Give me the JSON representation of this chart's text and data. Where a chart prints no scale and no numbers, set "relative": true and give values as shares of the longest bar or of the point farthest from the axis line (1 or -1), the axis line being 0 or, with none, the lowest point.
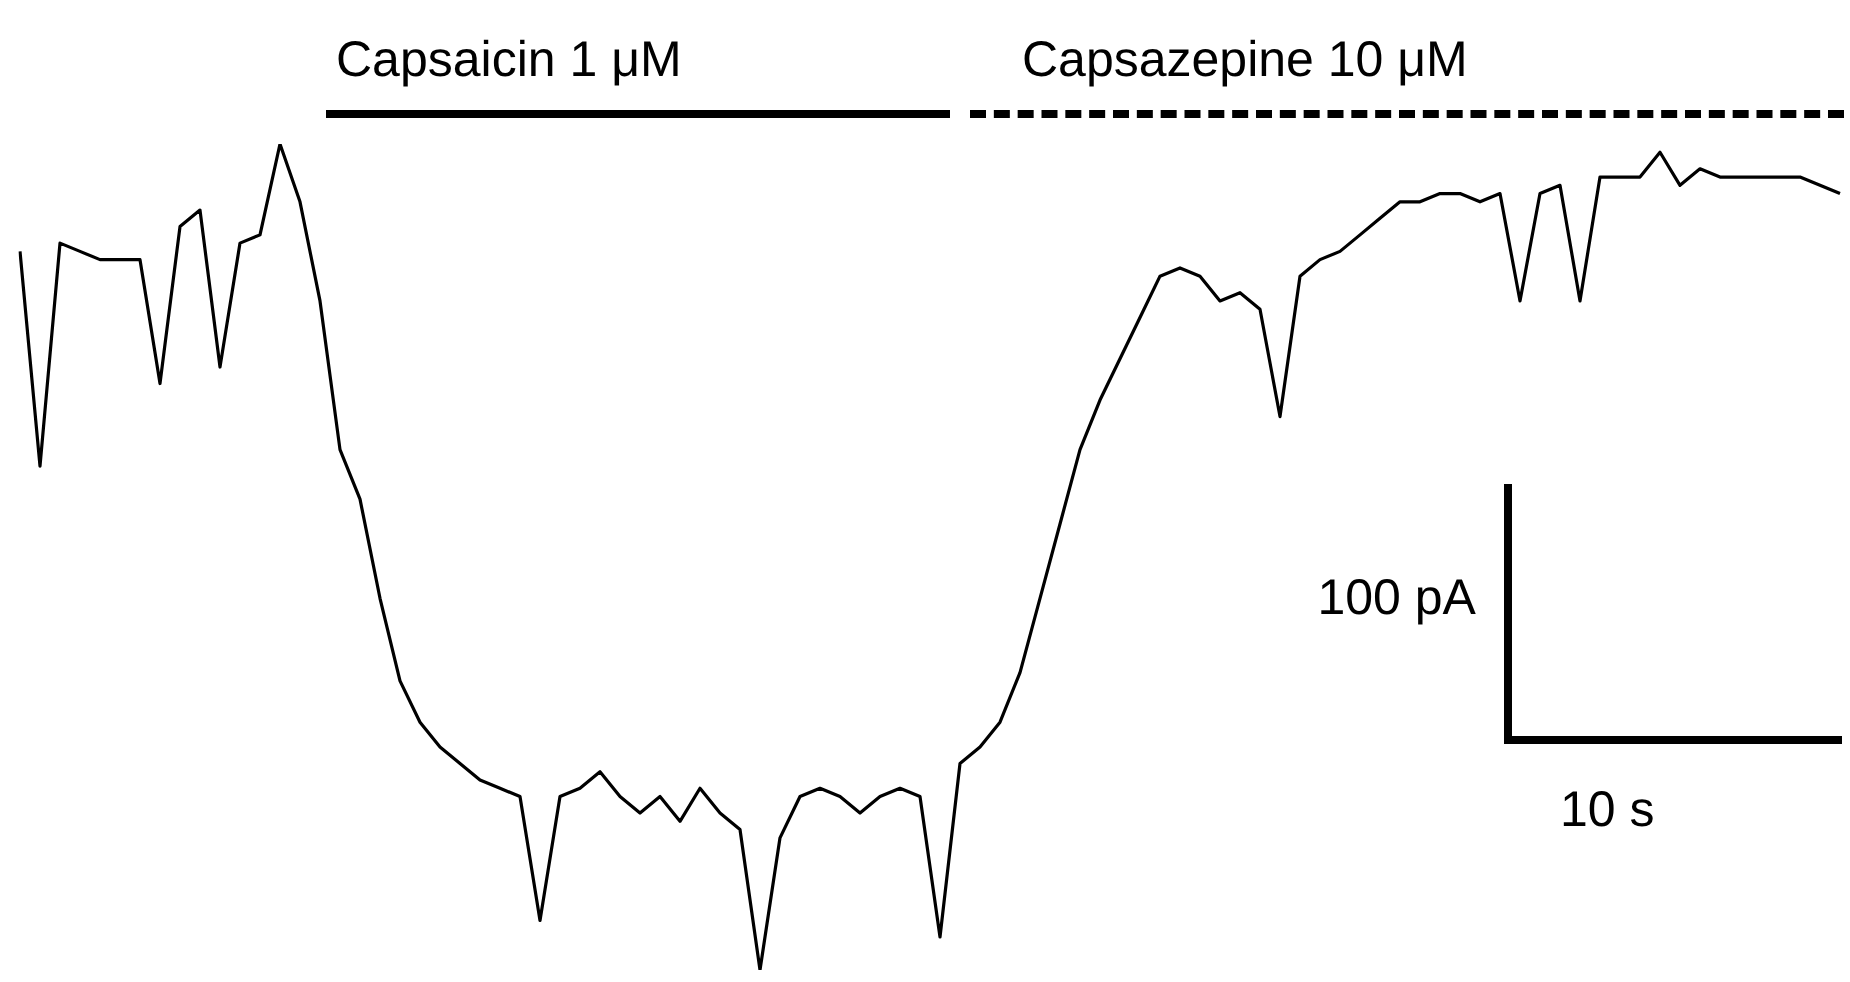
{
  "chart_data": {
    "type": "line",
    "relative": true,
    "marker": "none",
    "line_style": "solid",
    "annotations": [
      "Capsaicin 1 μM",
      "Capsazepine 10 μM",
      "100 pA",
      "10 s"
    ],
    "categories": [
      null,
      null,
      null,
      null,
      null,
      null,
      null,
      null,
      null,
      null,
      null,
      null,
      null,
      null,
      null,
      null,
      null,
      null,
      null,
      null,
      null,
      null,
      null,
      null,
      null,
      null,
      null,
      null,
      null,
      null,
      null,
      null,
      null,
      null,
      null,
      null,
      null,
      null,
      null,
      null,
      null,
      null,
      null,
      null,
      null,
      null,
      null,
      null,
      null,
      null,
      null,
      null,
      null,
      null,
      null,
      null,
      null,
      null,
      null,
      null,
      null,
      null,
      null,
      null,
      null,
      null,
      null,
      null,
      null,
      null,
      null,
      null,
      null,
      null,
      null,
      null,
      null,
      null,
      null,
      null,
      null,
      null,
      null,
      null,
      null,
      null,
      null,
      null,
      null,
      null,
      null,
      null
    ],
    "series": [
      {
        "color": "#000000",
        "values": [
          0.87,
          0.61,
          0.88,
          0.87,
          0.86,
          0.86,
          0.86,
          0.71,
          0.9,
          0.92,
          0.73,
          0.88,
          0.89,
          1,
          0.93,
          0.81,
          0.63,
          0.57,
          0.45,
          0.35,
          0.3,
          0.27,
          0.25,
          0.23,
          0.22,
          0.21,
          0.06,
          0.21,
          0.22,
          0.24,
          0.21,
          0.19,
          0.21,
          0.18,
          0.22,
          0.19,
          0.17,
          0,
          0.16,
          0.21,
          0.22,
          0.21,
          0.19,
          0.21,
          0.22,
          0.21,
          0.04,
          0.25,
          0.27,
          0.3,
          0.36,
          0.45,
          0.54,
          0.63,
          0.69,
          0.74,
          0.79,
          0.84,
          0.85,
          0.84,
          0.81,
          0.82,
          0.8,
          0.67,
          0.84,
          0.86,
          0.87,
          0.89,
          0.91,
          0.93,
          0.93,
          0.94,
          0.94,
          0.93,
          0.94,
          0.81,
          0.94,
          0.95,
          0.81,
          0.96,
          0.96,
          0.96,
          0.99,
          0.95,
          0.97,
          0.96,
          0.96,
          0.96,
          0.96,
          0.96,
          0.95,
          0.94
        ]
      }
    ]
  }
}
